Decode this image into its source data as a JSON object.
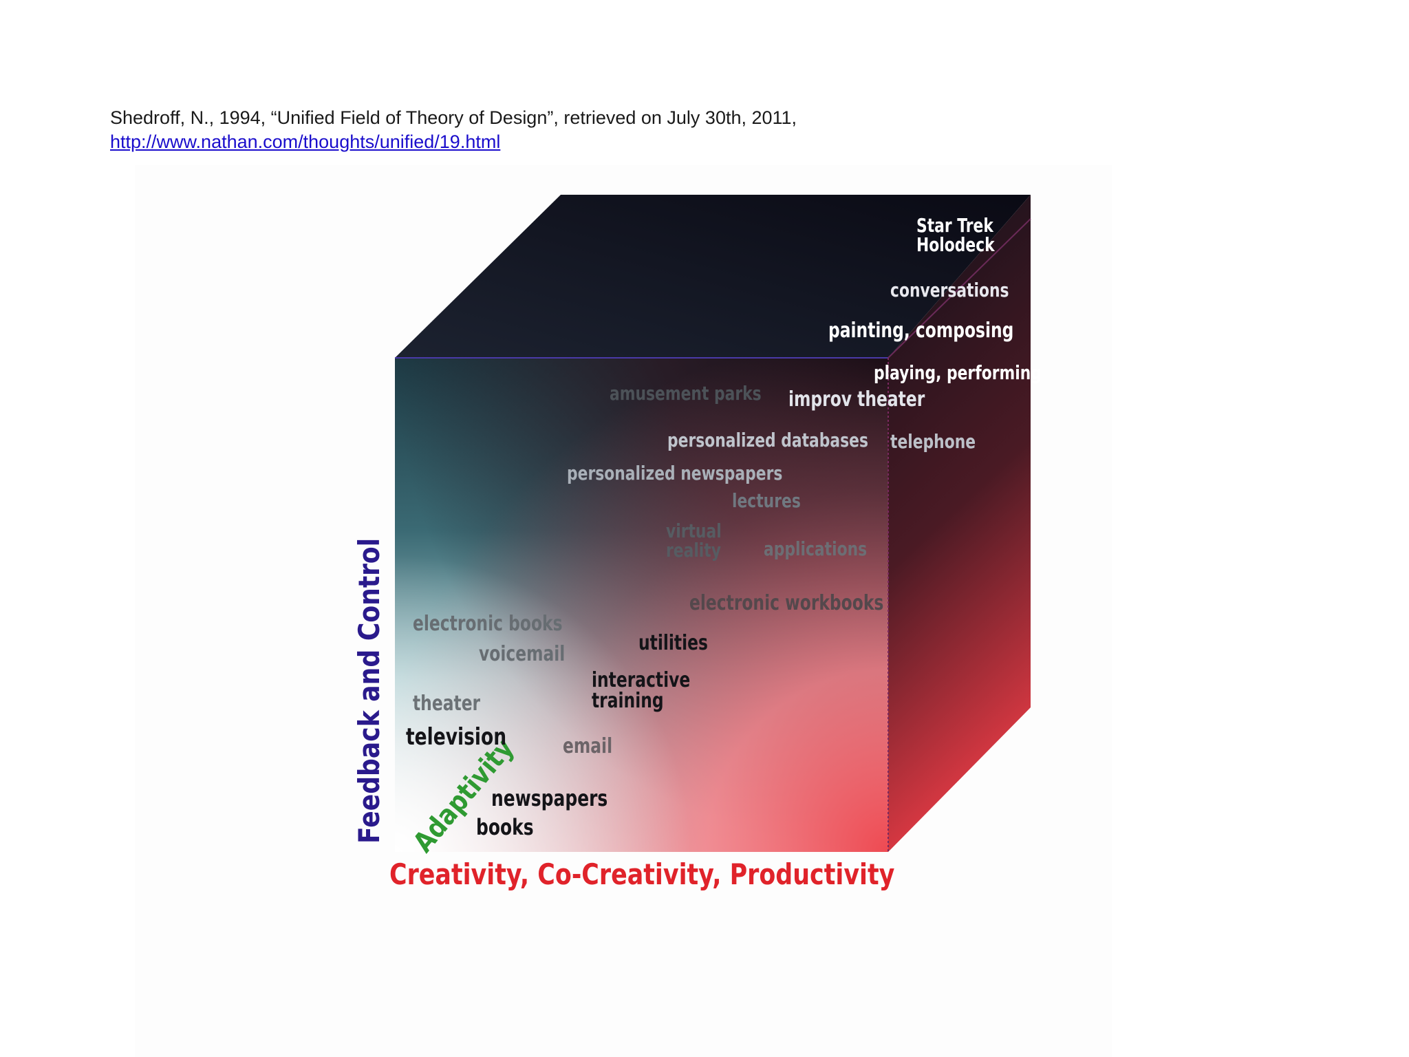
{
  "citation": {
    "text": "Shedroff, N., 1994, “Unified Field of Theory of Design”, retrieved on July 30th, 2011,",
    "link": "http://www.nathan.com/thoughts/unified/19.html"
  },
  "axes": {
    "vertical": "Feedback and Control",
    "horizontal": "Creativity, Co-Creativity, Productivity",
    "depth": "Adaptivity"
  },
  "colors": {
    "feedback_axis": "#2a1a8c",
    "creativity_axis": "#e0232a",
    "adaptivity_axis": "#2f9a32"
  },
  "items": {
    "star_trek": [
      "Star Trek",
      "Holodeck"
    ],
    "conversations": "conversations",
    "painting_composing": "painting, composing",
    "playing_performing": "playing, performing",
    "amusement_parks": "amusement parks",
    "improv_theater": "improv theater",
    "personalized_databases": "personalized databases",
    "telephone": "telephone",
    "personalized_newspapers": "personalized newspapers",
    "lectures": "lectures",
    "virtual_reality": [
      "virtual",
      "reality"
    ],
    "applications": "applications",
    "electronic_workbooks": "electronic workbooks",
    "electronic_books": "electronic books",
    "voicemail": "voicemail",
    "utilities": "utilities",
    "interactive_training": [
      "interactive",
      "training"
    ],
    "theater": "theater",
    "television": "television",
    "email": "email",
    "newspapers": "newspapers",
    "books": "books"
  }
}
